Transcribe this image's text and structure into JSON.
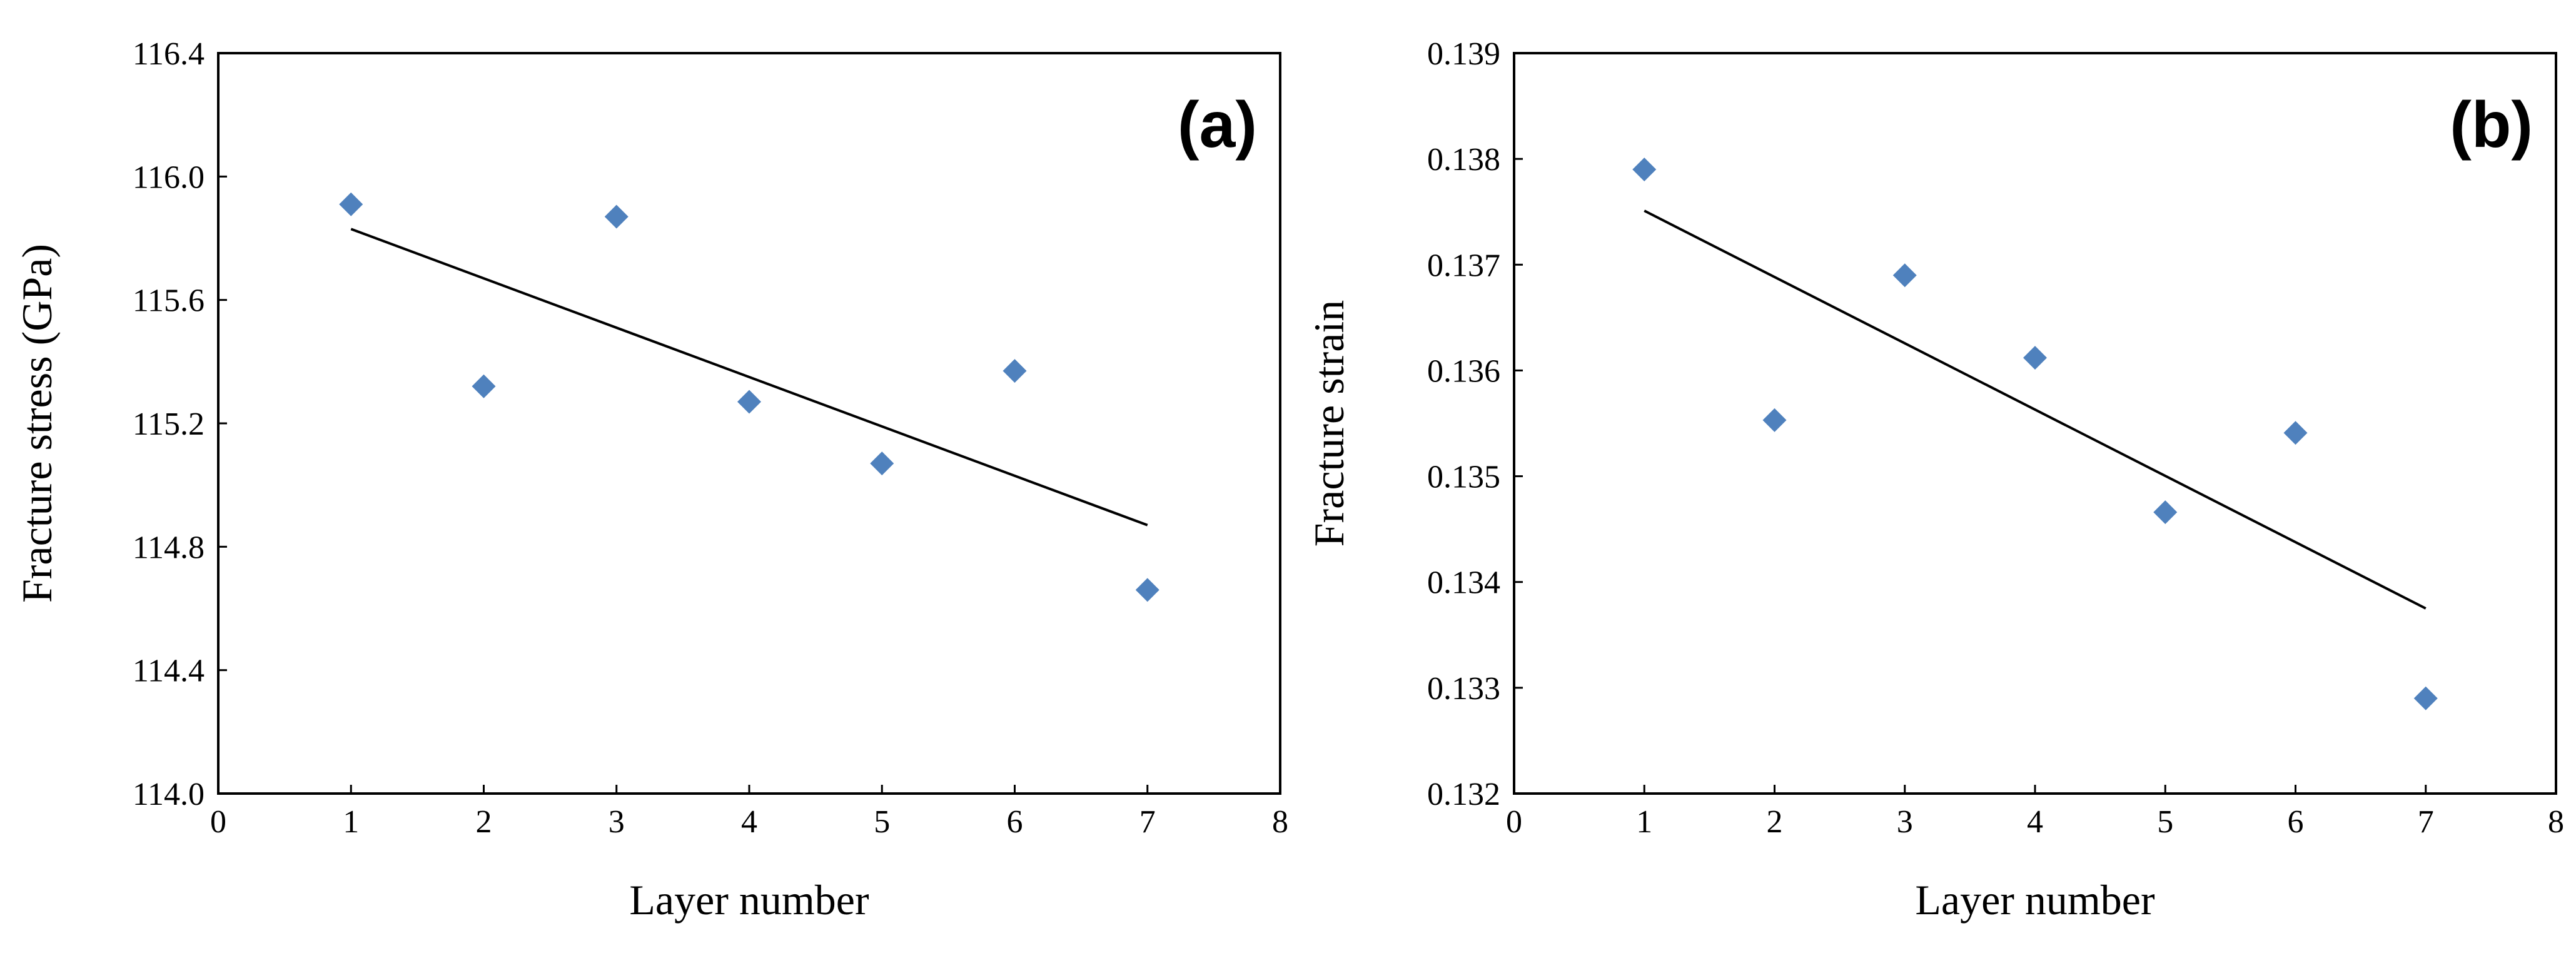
{
  "colors": {
    "marker": "#4F81BD",
    "trendline": "#000000",
    "axes": "#000000"
  },
  "chart_data": [
    {
      "type": "scatter",
      "panel_label": "(a)",
      "xlabel": "Layer number",
      "ylabel": "Fracture stress (GPa)",
      "xlim": [
        0,
        8
      ],
      "ylim": [
        114.0,
        116.4
      ],
      "x_ticks": [
        "0",
        "1",
        "2",
        "3",
        "4",
        "5",
        "6",
        "7",
        "8"
      ],
      "y_ticks": [
        "114.0",
        "114.4",
        "114.8",
        "115.2",
        "115.6",
        "116.0",
        "116.4"
      ],
      "series": [
        {
          "name": "Fracture stress",
          "x": [
            1,
            2,
            3,
            4,
            5,
            6,
            7
          ],
          "y": [
            115.91,
            115.32,
            115.87,
            115.27,
            115.07,
            115.37,
            114.66
          ]
        }
      ],
      "trendline": {
        "x": [
          1,
          7
        ],
        "y": [
          115.83,
          114.87
        ]
      },
      "legend": "none",
      "grid": false
    },
    {
      "type": "scatter",
      "panel_label": "(b)",
      "xlabel": "Layer number",
      "ylabel": "Fracture strain",
      "xlim": [
        0,
        8
      ],
      "ylim": [
        0.132,
        0.139
      ],
      "x_ticks": [
        "0",
        "1",
        "2",
        "3",
        "4",
        "5",
        "6",
        "7",
        "8"
      ],
      "y_ticks": [
        "0.132",
        "0.133",
        "0.134",
        "0.135",
        "0.136",
        "0.137",
        "0.138",
        "0.139"
      ],
      "series": [
        {
          "name": "Fracture strain",
          "x": [
            1,
            2,
            3,
            4,
            5,
            6,
            7
          ],
          "y": [
            0.1379,
            0.13553,
            0.1369,
            0.13612,
            0.13466,
            0.13541,
            0.1329
          ]
        }
      ],
      "trendline": {
        "x": [
          1,
          7
        ],
        "y": [
          0.13751,
          0.13375
        ]
      },
      "legend": "none",
      "grid": false
    }
  ]
}
